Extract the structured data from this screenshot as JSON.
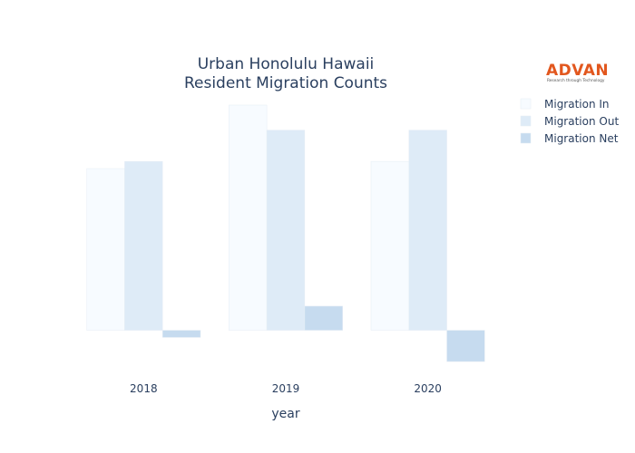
{
  "chart_data": {
    "type": "bar",
    "title": [
      "Urban Honolulu Hawaii",
      "Resident Migration Counts"
    ],
    "xlabel": "year",
    "ylabel": "",
    "categories": [
      "2018",
      "2019",
      "2020"
    ],
    "series": [
      {
        "name": "Migration In",
        "values": [
          90500,
          126000,
          94500
        ],
        "color": "#f7fbff"
      },
      {
        "name": "Migration Out",
        "values": [
          94500,
          112000,
          112000
        ],
        "color": "#deebf7"
      },
      {
        "name": "Migration Net",
        "values": [
          -4000,
          13500,
          -17500
        ],
        "color": "#c6dbef"
      }
    ],
    "ylim": [
      -20000,
      126000
    ],
    "grid": false,
    "legend_position": "top-right"
  },
  "logo": {
    "wordmark": "ADVAN",
    "tagline": "Research through Technology"
  }
}
